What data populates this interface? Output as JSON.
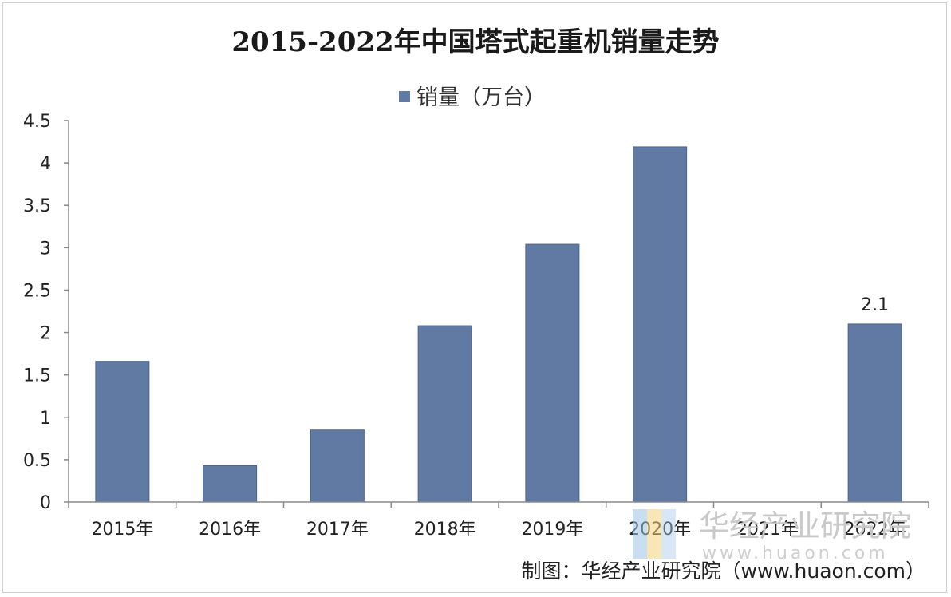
{
  "chart_data": {
    "type": "bar",
    "title": "2015-2022年中国塔式起重机销量走势",
    "categories": [
      "2015年",
      "2016年",
      "2017年",
      "2018年",
      "2019年",
      "2020年",
      "2021年",
      "2022年"
    ],
    "series": [
      {
        "name": "销量（万台）",
        "values": [
          1.66,
          0.43,
          0.85,
          2.08,
          3.04,
          4.19,
          null,
          2.1
        ],
        "color": "#607aa4"
      }
    ],
    "data_labels": [
      {
        "category": "2022年",
        "text": "2.1"
      }
    ],
    "yticks": [
      "4.5",
      "4",
      "3.5",
      "3",
      "2.5",
      "2",
      "1.5",
      "1",
      "0.5",
      "0"
    ],
    "ylim": [
      0,
      4.5
    ],
    "grid": false,
    "legend_position": "top-center"
  },
  "watermark": {
    "text": "华经产业研究院",
    "url": "www.huaon.com"
  },
  "source_text": "制图：华经产业研究院（www.huaon.com）"
}
